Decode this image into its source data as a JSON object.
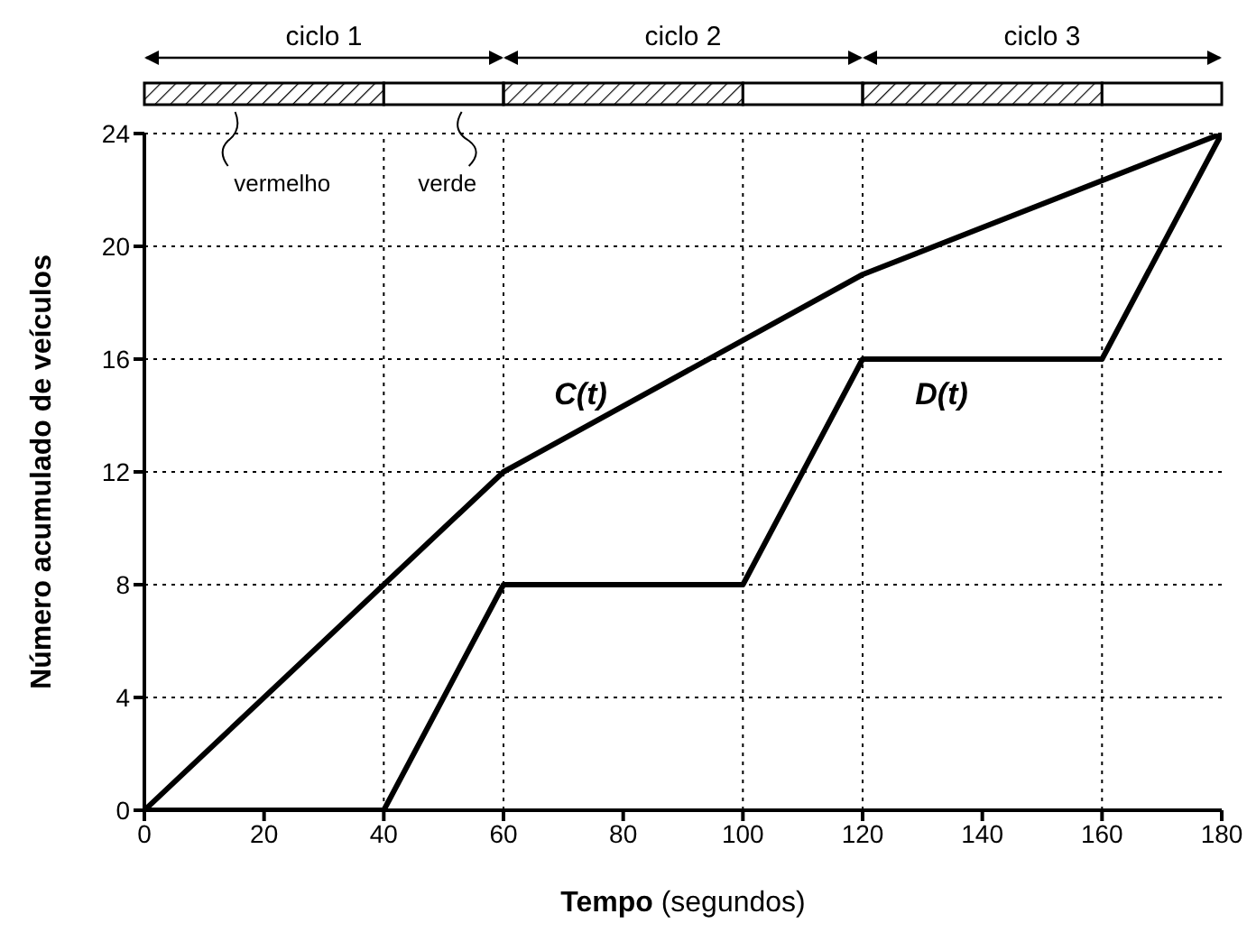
{
  "chart_data": {
    "type": "line",
    "xlabel": "Tempo (segundos)",
    "ylabel": "Número acumulado de veículos",
    "series": [
      {
        "color": "#000000",
        "x": [
          0,
          60,
          120,
          180
        ],
        "values": [
          0,
          12,
          19,
          24
        ]
      },
      {
        "color": "#000000",
        "x": [
          0,
          40,
          60,
          100,
          120,
          160,
          180
        ],
        "values": [
          0,
          0,
          8,
          8,
          16,
          16,
          24
        ]
      }
    ],
    "xlim": [
      0,
      180
    ],
    "ylim": [
      0,
      24
    ],
    "xticks": [
      0,
      20,
      40,
      60,
      80,
      100,
      120,
      140,
      160,
      180
    ],
    "yticks": [
      0,
      4,
      8,
      12,
      16,
      20,
      24
    ],
    "grid": "y",
    "marker": "none",
    "line_style": "solid",
    "ref_lines": [
      {
        "axis": "x",
        "value": 40,
        "color": "#000000",
        "line_style": "dotted"
      },
      {
        "axis": "x",
        "value": 60,
        "color": "#000000",
        "line_style": "dotted"
      },
      {
        "axis": "x",
        "value": 100,
        "color": "#000000",
        "line_style": "dotted"
      },
      {
        "axis": "x",
        "value": 120,
        "color": "#000000",
        "line_style": "dotted"
      },
      {
        "axis": "x",
        "value": 160,
        "color": "#000000",
        "line_style": "dotted"
      }
    ],
    "annotations": [
      "ciclo 1",
      "ciclo 2",
      "ciclo 3",
      "vermelho",
      "verde",
      "C(t)",
      "D(t)"
    ]
  }
}
